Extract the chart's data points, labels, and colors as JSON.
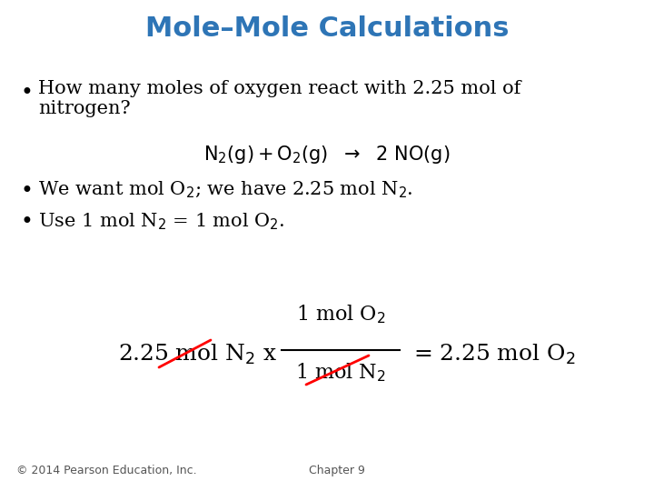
{
  "title": "Mole–Mole Calculations",
  "title_color": "#2E75B6",
  "background_color": "#FFFFFF",
  "text_color": "#000000",
  "footer_left": "© 2014 Pearson Education, Inc.",
  "footer_right": "Chapter 9",
  "font_size_title": 22,
  "font_size_body": 15,
  "font_size_eq": 14,
  "font_size_footer": 9,
  "font_size_calc": 15
}
